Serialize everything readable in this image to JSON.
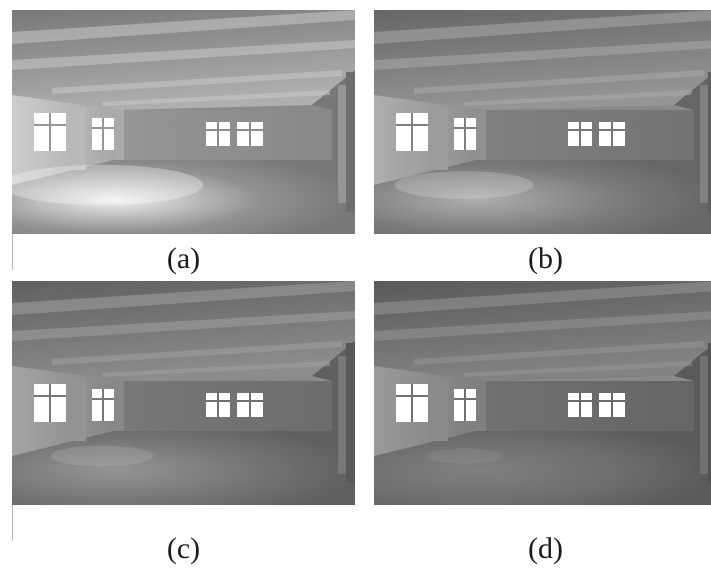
{
  "figure": {
    "panels": [
      {
        "id": "a",
        "caption": "(a)",
        "brightness": 1.0,
        "floor_light": 0.9
      },
      {
        "id": "b",
        "caption": "(b)",
        "brightness": 0.85,
        "floor_light": 0.55
      },
      {
        "id": "c",
        "caption": "(c)",
        "brightness": 0.8,
        "floor_light": 0.35
      },
      {
        "id": "d",
        "caption": "(d)",
        "brightness": 0.75,
        "floor_light": 0.2
      }
    ]
  }
}
